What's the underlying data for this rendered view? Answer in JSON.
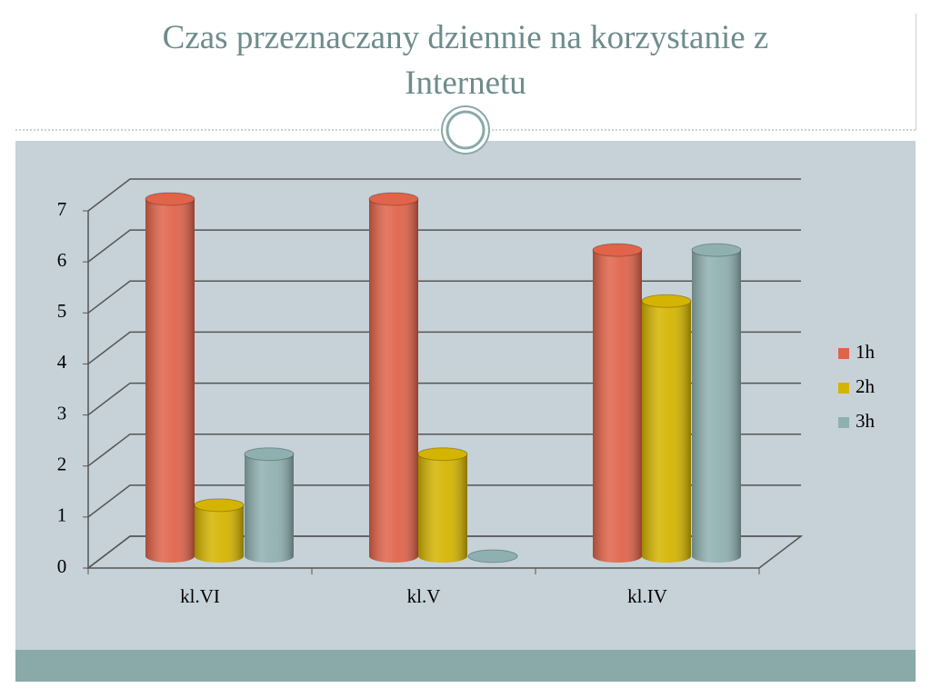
{
  "chart_data": {
    "type": "bar",
    "title": "Czas przeznaczany  dziennie na korzystanie z Internetu",
    "categories": [
      "kl.VI",
      "kl.V",
      "kl.IV"
    ],
    "series": [
      {
        "name": "1h",
        "color": "#e0634a",
        "values": [
          7,
          7,
          6
        ]
      },
      {
        "name": "2h",
        "color": "#d4b400",
        "values": [
          1,
          2,
          5
        ]
      },
      {
        "name": "3h",
        "color": "#8fb0b0",
        "values": [
          2,
          0,
          6
        ]
      }
    ],
    "ylim": [
      0,
      7
    ],
    "yticks": [
      0,
      1,
      2,
      3,
      4,
      5,
      6,
      7
    ],
    "grid": true,
    "legend": "right"
  }
}
